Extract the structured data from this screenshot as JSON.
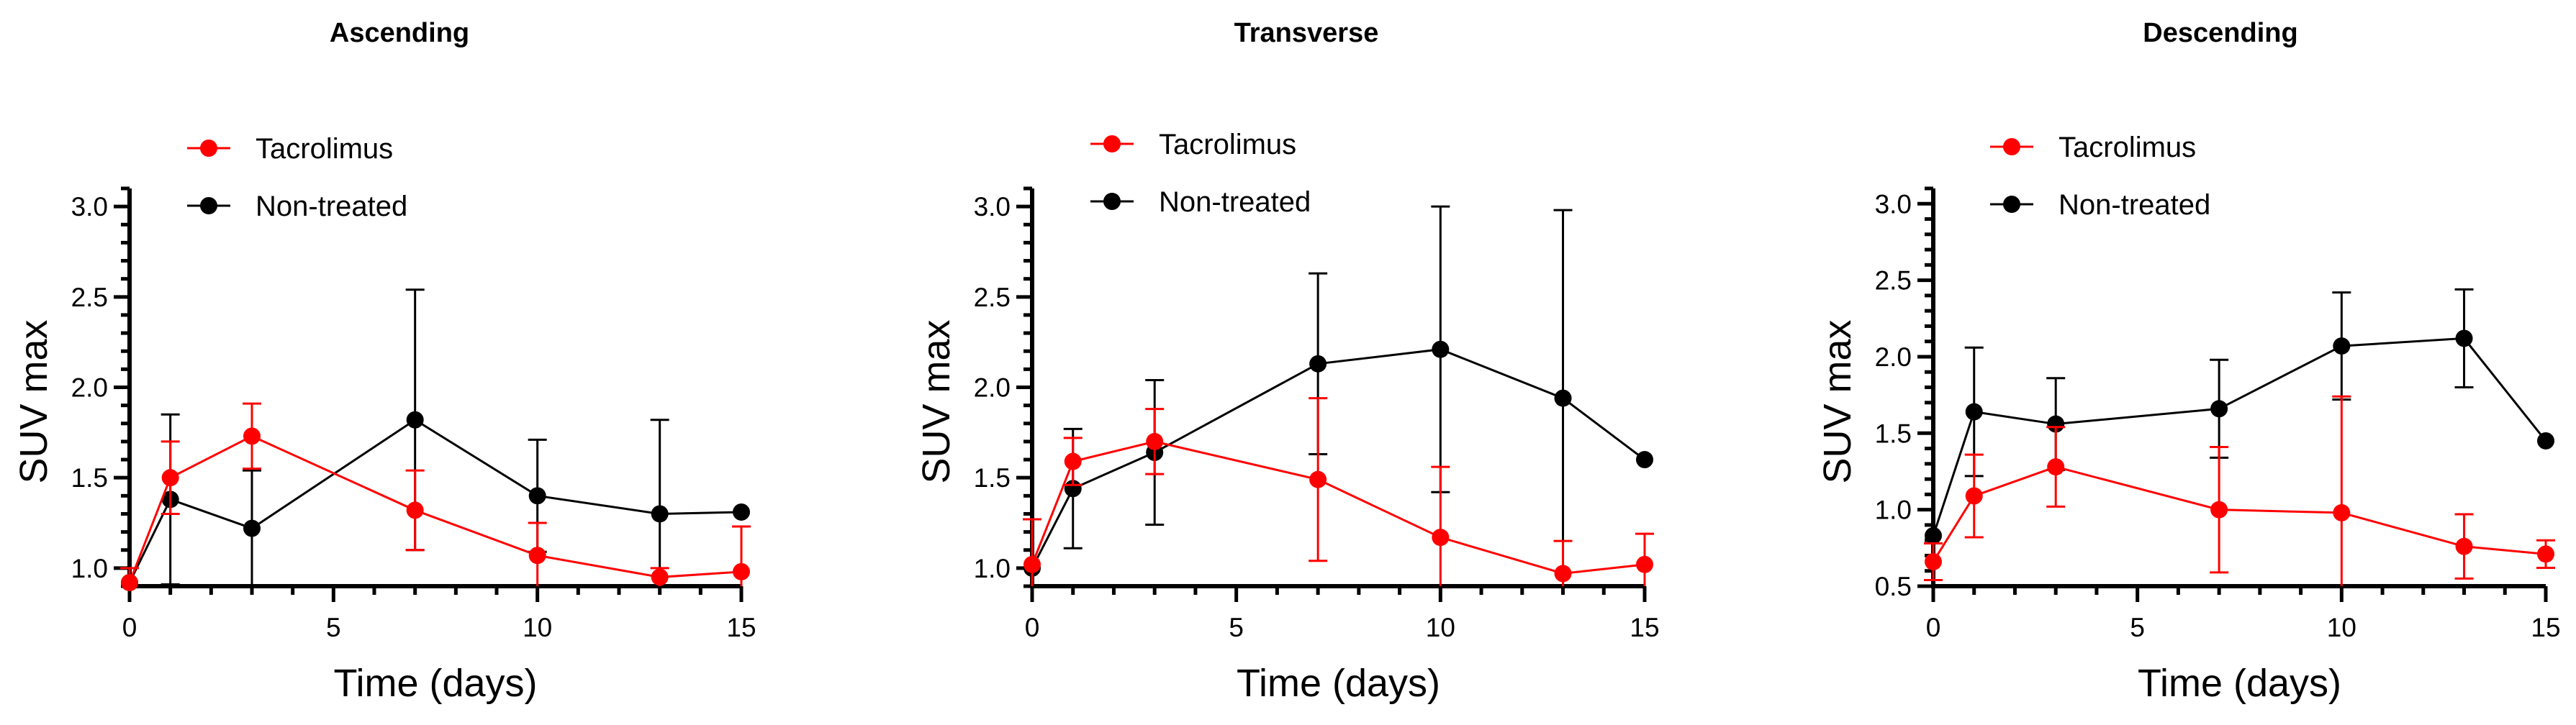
{
  "chart_data": [
    {
      "type": "line",
      "title": "Ascending",
      "xlabel": "Time (days)",
      "ylabel": "SUV max",
      "xlim": [
        0,
        15
      ],
      "ylim": [
        0.9,
        3.1
      ],
      "xticks": [
        0,
        5,
        10,
        15
      ],
      "yticks": [
        1.0,
        1.5,
        2.0,
        2.5,
        3.0
      ],
      "ytick_labels": [
        "1.0",
        "1.5",
        "2.0",
        "2.5",
        "3.0"
      ],
      "grid": false,
      "legend_position": "top-left",
      "series": [
        {
          "name": "Tacrolimus",
          "color": "#ff0000",
          "x": [
            0,
            1,
            3,
            7,
            10,
            13,
            15
          ],
          "y": [
            0.92,
            1.5,
            1.73,
            1.32,
            1.07,
            0.95,
            0.98
          ],
          "err": [
            0.08,
            0.2,
            0.18,
            0.22,
            0.18,
            0.05,
            0.25
          ]
        },
        {
          "name": "Non-treated",
          "color": "#000000",
          "x": [
            0,
            1,
            3,
            7,
            10,
            13,
            15
          ],
          "y": [
            0.92,
            1.38,
            1.22,
            1.82,
            1.4,
            1.3,
            1.31
          ],
          "err": [
            0.0,
            0.47,
            0.32,
            0.72,
            0.31,
            0.52,
            0.0
          ]
        }
      ]
    },
    {
      "type": "line",
      "title": "Transverse",
      "xlabel": "Time (days)",
      "ylabel": "SUV max",
      "xlim": [
        0,
        15
      ],
      "ylim": [
        0.9,
        3.1
      ],
      "xticks": [
        0,
        5,
        10,
        15
      ],
      "yticks": [
        1.0,
        1.5,
        2.0,
        2.5,
        3.0
      ],
      "ytick_labels": [
        "1.0",
        "1.5",
        "2.0",
        "2.5",
        "3.0"
      ],
      "grid": false,
      "legend_position": "top-left",
      "series": [
        {
          "name": "Tacrolimus",
          "color": "#ff0000",
          "x": [
            0,
            1,
            3,
            7,
            10,
            13,
            15
          ],
          "y": [
            1.02,
            1.59,
            1.7,
            1.49,
            1.17,
            0.97,
            1.02
          ],
          "err": [
            0.25,
            0.13,
            0.18,
            0.45,
            0.39,
            0.18,
            0.17
          ]
        },
        {
          "name": "Non-treated",
          "color": "#000000",
          "x": [
            0,
            1,
            3,
            7,
            10,
            13,
            15
          ],
          "y": [
            1.0,
            1.44,
            1.64,
            2.13,
            2.21,
            1.94,
            1.6
          ],
          "err": [
            0.0,
            0.33,
            0.4,
            0.5,
            0.79,
            1.04,
            0.0
          ]
        }
      ]
    },
    {
      "type": "line",
      "title": "Descending",
      "xlabel": "Time (days)",
      "ylabel": "SUV max",
      "xlim": [
        0,
        15
      ],
      "ylim": [
        0.5,
        3.1
      ],
      "xticks": [
        0,
        5,
        10,
        15
      ],
      "yticks": [
        0.5,
        1.0,
        1.5,
        2.0,
        2.5,
        3.0
      ],
      "ytick_labels": [
        "0.5",
        "1.0",
        "1.5",
        "2.0",
        "2.5",
        "3.0"
      ],
      "grid": false,
      "legend_position": "top-left",
      "series": [
        {
          "name": "Tacrolimus",
          "color": "#ff0000",
          "x": [
            0,
            1,
            3,
            7,
            10,
            13,
            15
          ],
          "y": [
            0.66,
            1.09,
            1.28,
            1.0,
            0.98,
            0.76,
            0.71
          ],
          "err": [
            0.12,
            0.27,
            0.26,
            0.41,
            0.76,
            0.21,
            0.09
          ]
        },
        {
          "name": "Non-treated",
          "color": "#000000",
          "x": [
            0,
            1,
            3,
            7,
            10,
            13,
            15
          ],
          "y": [
            0.83,
            1.64,
            1.56,
            1.66,
            2.07,
            2.12,
            1.45
          ],
          "err": [
            0.0,
            0.42,
            0.3,
            0.32,
            0.35,
            0.32,
            0.0
          ]
        }
      ]
    }
  ]
}
